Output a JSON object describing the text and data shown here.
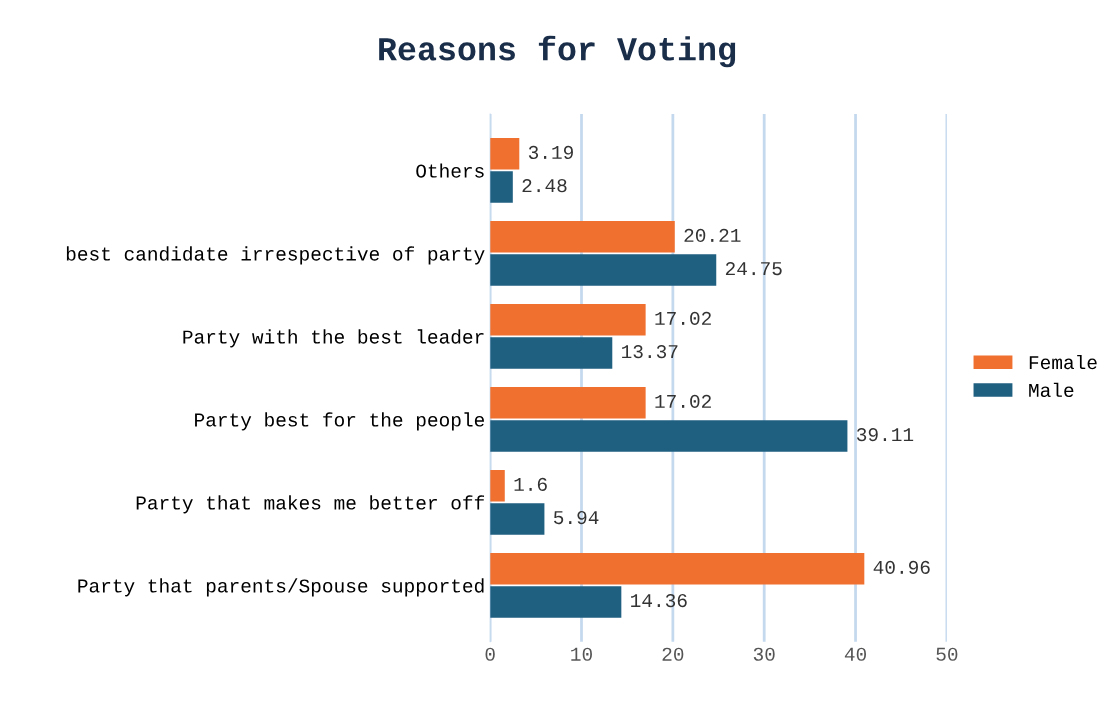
{
  "chart_data": {
    "type": "bar",
    "orientation": "horizontal",
    "title": "Reasons for Voting",
    "categories": [
      "Others",
      "best candidate irrespective of party",
      "Party with the best leader",
      "Party best for the people",
      "Party that makes me better off",
      "Party that parents/Spouse supported"
    ],
    "series": [
      {
        "name": "Female",
        "color": "#f07030",
        "values": [
          3.19,
          20.21,
          17.02,
          17.02,
          1.6,
          40.96
        ]
      },
      {
        "name": "Male",
        "color": "#1f5f80",
        "values": [
          2.48,
          24.75,
          13.37,
          39.11,
          5.94,
          14.36
        ]
      }
    ],
    "xlim": [
      0,
      50
    ],
    "xticks": [
      0,
      10,
      20,
      30,
      40,
      50
    ],
    "grid": "x",
    "legend": "right",
    "data_labels": true
  }
}
